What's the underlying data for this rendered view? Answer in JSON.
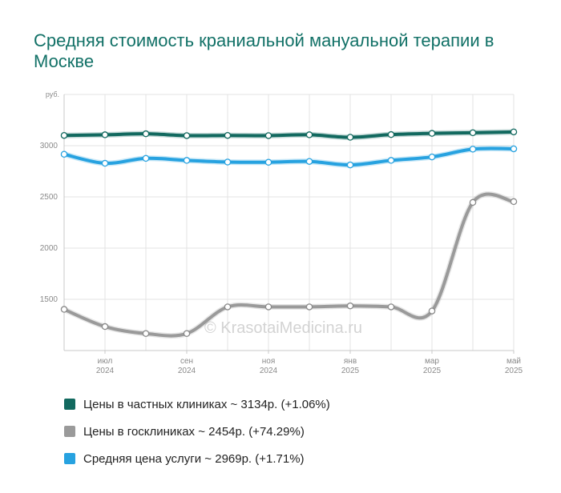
{
  "title": "Средняя стоимость краниальной мануальной терапии в Москве",
  "watermark": "© KrasotaiMedicina.ru",
  "chart_data": {
    "type": "line",
    "y_unit": "руб.",
    "ylim": [
      1000,
      3500
    ],
    "y_ticks": [
      1500,
      2000,
      2500,
      3000
    ],
    "grid": true,
    "legend_position": "bottom",
    "x_tick_labels": [
      {
        "month": "июл",
        "year": "2024"
      },
      {
        "month": "сен",
        "year": "2024"
      },
      {
        "month": "ноя",
        "year": "2024"
      },
      {
        "month": "янв",
        "year": "2025"
      },
      {
        "month": "мар",
        "year": "2025"
      },
      {
        "month": "май",
        "year": "2025"
      }
    ],
    "x": [
      "2024-06",
      "2024-07",
      "2024-08",
      "2024-09",
      "2024-10",
      "2024-11",
      "2024-12",
      "2025-01",
      "2025-02",
      "2025-03",
      "2025-04",
      "2025-05"
    ],
    "series": [
      {
        "name": "Цены в частных клиниках",
        "color": "#12695f",
        "values": [
          3100,
          3106,
          3116,
          3098,
          3100,
          3098,
          3106,
          3082,
          3108,
          3120,
          3126,
          3134
        ]
      },
      {
        "name": "Цены в госклиниках",
        "color": "#9a9a9a",
        "values": [
          1402,
          1234,
          1166,
          1166,
          1426,
          1426,
          1426,
          1436,
          1426,
          1386,
          2446,
          2454
        ]
      },
      {
        "name": "Средняя цена услуги",
        "color": "#27a2e0",
        "values": [
          2916,
          2828,
          2876,
          2856,
          2840,
          2838,
          2846,
          2812,
          2856,
          2890,
          2966,
          2969
        ]
      }
    ]
  },
  "legend": [
    {
      "color": "#12695f",
      "label": "Цены в частных клиниках ~ 3134р. (+1.06%)"
    },
    {
      "color": "#9a9a9a",
      "label": "Цены в госклиниках ~ 2454р. (+74.29%)"
    },
    {
      "color": "#27a2e0",
      "label": "Средняя цена услуги ~ 2969р. (+1.71%)"
    }
  ]
}
